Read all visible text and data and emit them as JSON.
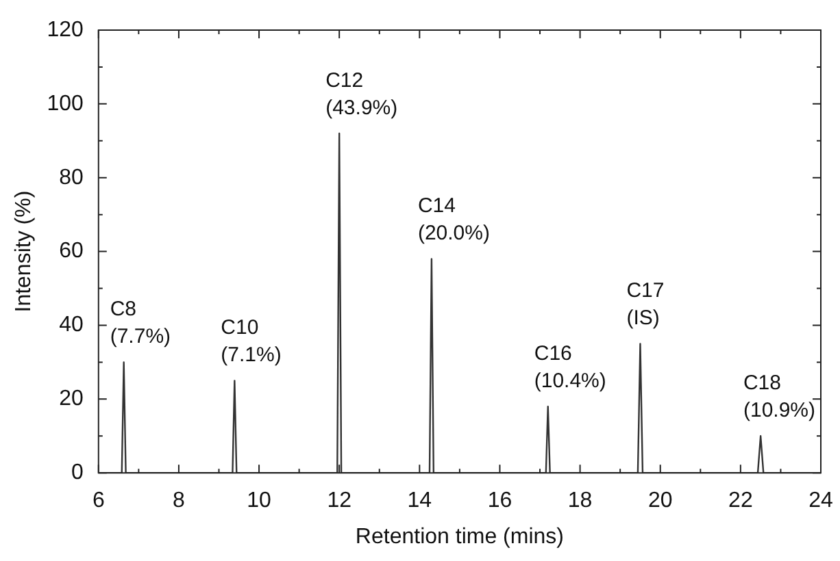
{
  "chart_data": {
    "type": "line",
    "xlabel": "Retention time (mins)",
    "ylabel": "Intensity (%)",
    "series": [
      {
        "color": "#333333",
        "x": [
          6,
          6.58,
          6.63,
          6.68,
          9.34,
          9.39,
          9.44,
          11.95,
          12.0,
          12.05,
          14.25,
          14.3,
          14.35,
          17.15,
          17.2,
          17.25,
          19.44,
          19.5,
          19.56,
          22.43,
          22.5,
          22.57,
          24
        ],
        "values": [
          0,
          0,
          30,
          0,
          0,
          25,
          0,
          0,
          92,
          0,
          0,
          58,
          0,
          0,
          18,
          0,
          0,
          35,
          0,
          0,
          10,
          0,
          0
        ]
      }
    ],
    "xlim": [
      6,
      24
    ],
    "ylim": [
      0,
      120
    ],
    "xticks": [
      6,
      {
        "value": 7,
        "label": null
      },
      8,
      {
        "value": 9,
        "label": null
      },
      10,
      {
        "value": 11,
        "label": null
      },
      12,
      {
        "value": 13,
        "label": null
      },
      14,
      {
        "value": 15,
        "label": null
      },
      16,
      {
        "value": 17,
        "label": null
      },
      18,
      {
        "value": 19,
        "label": null
      },
      20,
      {
        "value": 21,
        "label": null
      },
      22,
      {
        "value": 23,
        "label": null
      },
      24
    ],
    "yticks": [
      0,
      {
        "value": 10,
        "label": null
      },
      20,
      {
        "value": 30,
        "label": null
      },
      40,
      {
        "value": 50,
        "label": null
      },
      60,
      {
        "value": 70,
        "label": null
      },
      80,
      {
        "value": 90,
        "label": null
      },
      100,
      {
        "value": 110,
        "label": null
      },
      120
    ],
    "annotations": [
      {
        "text": "C8\n(7.7%)",
        "x": 6.63,
        "y": 30
      },
      {
        "text": "C10\n(7.1%)",
        "x": 9.39,
        "y": 25
      },
      {
        "text": "C12\n(43.9%)",
        "x": 12.0,
        "y": 92
      },
      {
        "text": "C14\n(20.0%)",
        "x": 14.3,
        "y": 58
      },
      {
        "text": "C16\n(10.4%)",
        "x": 17.2,
        "y": 18
      },
      {
        "text": "C17\n(IS)",
        "x": 19.5,
        "y": 35
      },
      {
        "text": "C18\n(10.9%)",
        "x": 22.5,
        "y": 10
      }
    ],
    "grid": false,
    "legend": false,
    "marker": "none",
    "line_style": "solid"
  }
}
